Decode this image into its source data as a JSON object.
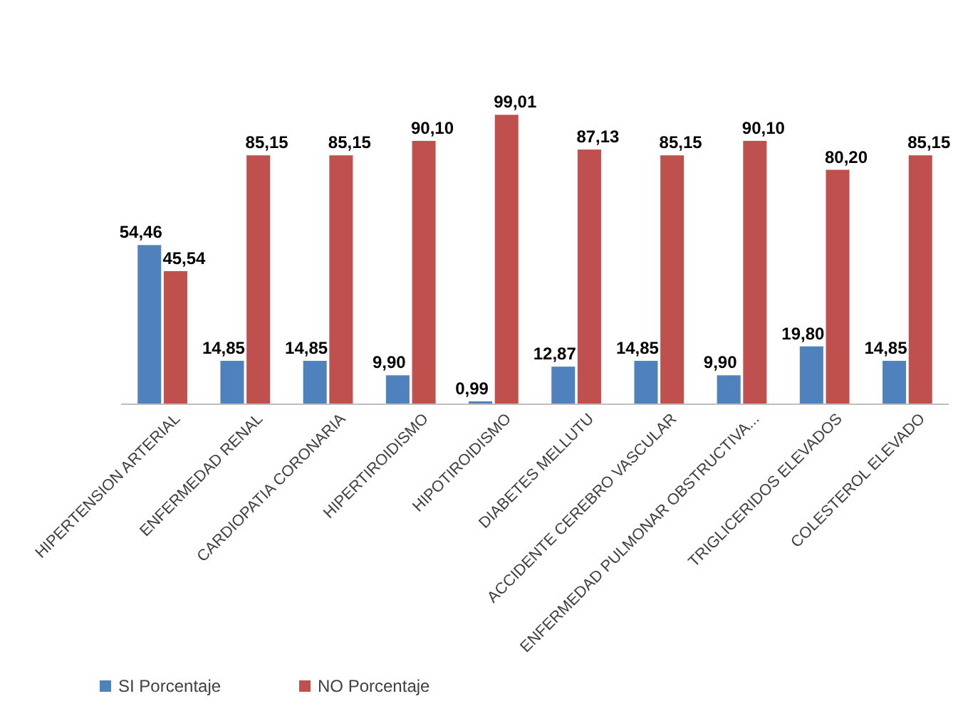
{
  "chart_data": {
    "type": "bar",
    "categories": [
      "HIPERTENSION ARTERIAL",
      "ENFERMEDAD RENAL",
      "CARDIOPATIA CORONARIA",
      "HIPERTIROIDISMO",
      "HIPOTIROIDISMO",
      "DIABETES MELLUTU",
      "ACCIDENTE CEREBRO VASCULAR",
      "ENFERMEDAD PULMONAR OBSTRUCTIVA...",
      "TRIGLICERIDOS ELEVADOS",
      "COLESTEROL ELEVADO"
    ],
    "series": [
      {
        "name": "SI Porcentaje",
        "color": "#4f81bd",
        "values": [
          54.46,
          14.85,
          14.85,
          9.9,
          0.99,
          12.87,
          14.85,
          9.9,
          19.8,
          14.85
        ],
        "value_labels": [
          "54,46",
          "14,85",
          "14,85",
          "9,90",
          "0,99",
          "12,87",
          "14,85",
          "9,90",
          "19,80",
          "14,85"
        ]
      },
      {
        "name": "NO Porcentaje",
        "color": "#c0504d",
        "values": [
          45.54,
          85.15,
          85.15,
          90.1,
          99.01,
          87.13,
          85.15,
          90.1,
          80.2,
          85.15
        ],
        "value_labels": [
          "45,54",
          "85,15",
          "85,15",
          "90,10",
          "99,01",
          "87,13",
          "85,15",
          "90,10",
          "80,20",
          "85,15"
        ]
      }
    ],
    "tick_labels": "x",
    "legend": "bottom left"
  }
}
